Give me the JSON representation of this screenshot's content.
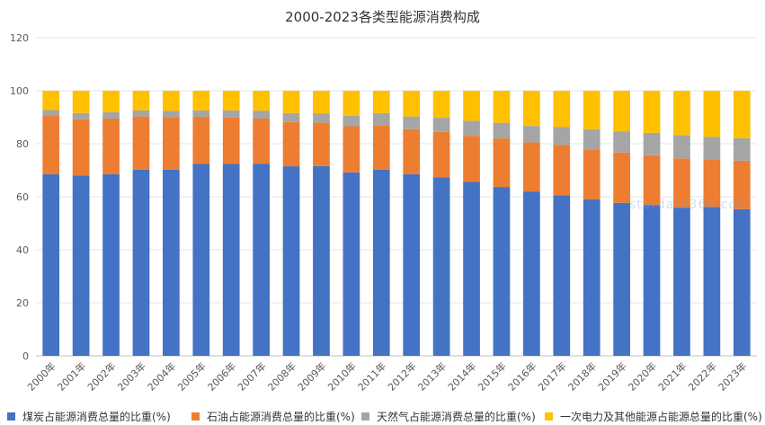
{
  "chart_data": {
    "type": "bar",
    "stacked": true,
    "title": "2000-2023各类型能源消费构成",
    "categories": [
      "2000年",
      "2001年",
      "2002年",
      "2003年",
      "2004年",
      "2005年",
      "2006年",
      "2007年",
      "2008年",
      "2009年",
      "2010年",
      "2011年",
      "2012年",
      "2013年",
      "2014年",
      "2015年",
      "2016年",
      "2017年",
      "2018年",
      "2019年",
      "2020年",
      "2021年",
      "2022年",
      "2023年"
    ],
    "ylim": [
      0,
      120
    ],
    "yticks": [
      0,
      20,
      40,
      60,
      80,
      100,
      120
    ],
    "grid": true,
    "legend_position": "bottom",
    "series": [
      {
        "name": "煤炭占能源消费总量的比重(%)",
        "color": "#4472C4",
        "values": [
          68.5,
          68.0,
          68.5,
          70.2,
          70.2,
          72.4,
          72.4,
          72.5,
          71.5,
          71.6,
          69.2,
          70.2,
          68.5,
          67.4,
          65.6,
          63.7,
          62.0,
          60.6,
          59.0,
          57.7,
          56.9,
          55.9,
          56.2,
          55.3
        ]
      },
      {
        "name": "石油占能源消费总量的比重(%)",
        "color": "#ED7D31",
        "values": [
          22.0,
          21.2,
          21.0,
          20.1,
          19.9,
          17.8,
          17.5,
          17.0,
          16.7,
          16.4,
          17.4,
          16.8,
          17.0,
          17.1,
          17.4,
          18.3,
          18.5,
          18.9,
          18.9,
          19.0,
          18.8,
          18.6,
          17.9,
          18.3
        ]
      },
      {
        "name": "天然气占能源消费总量的比重(%)",
        "color": "#A5A5A5",
        "values": [
          2.2,
          2.4,
          2.4,
          2.3,
          2.3,
          2.4,
          2.7,
          3.0,
          3.4,
          3.5,
          4.0,
          4.6,
          4.8,
          5.3,
          5.7,
          5.9,
          6.2,
          6.9,
          7.6,
          8.0,
          8.4,
          8.8,
          8.5,
          8.5
        ]
      },
      {
        "name": "一次电力及其他能源占能源总量的比重(%)",
        "color": "#FFC000",
        "values": [
          7.3,
          8.4,
          8.1,
          7.4,
          7.6,
          7.4,
          7.4,
          7.5,
          8.4,
          8.5,
          9.4,
          8.4,
          9.7,
          10.2,
          11.3,
          12.1,
          13.3,
          13.6,
          14.5,
          15.3,
          15.9,
          16.7,
          17.4,
          17.9
        ]
      }
    ]
  },
  "watermark": "stardata360.com"
}
